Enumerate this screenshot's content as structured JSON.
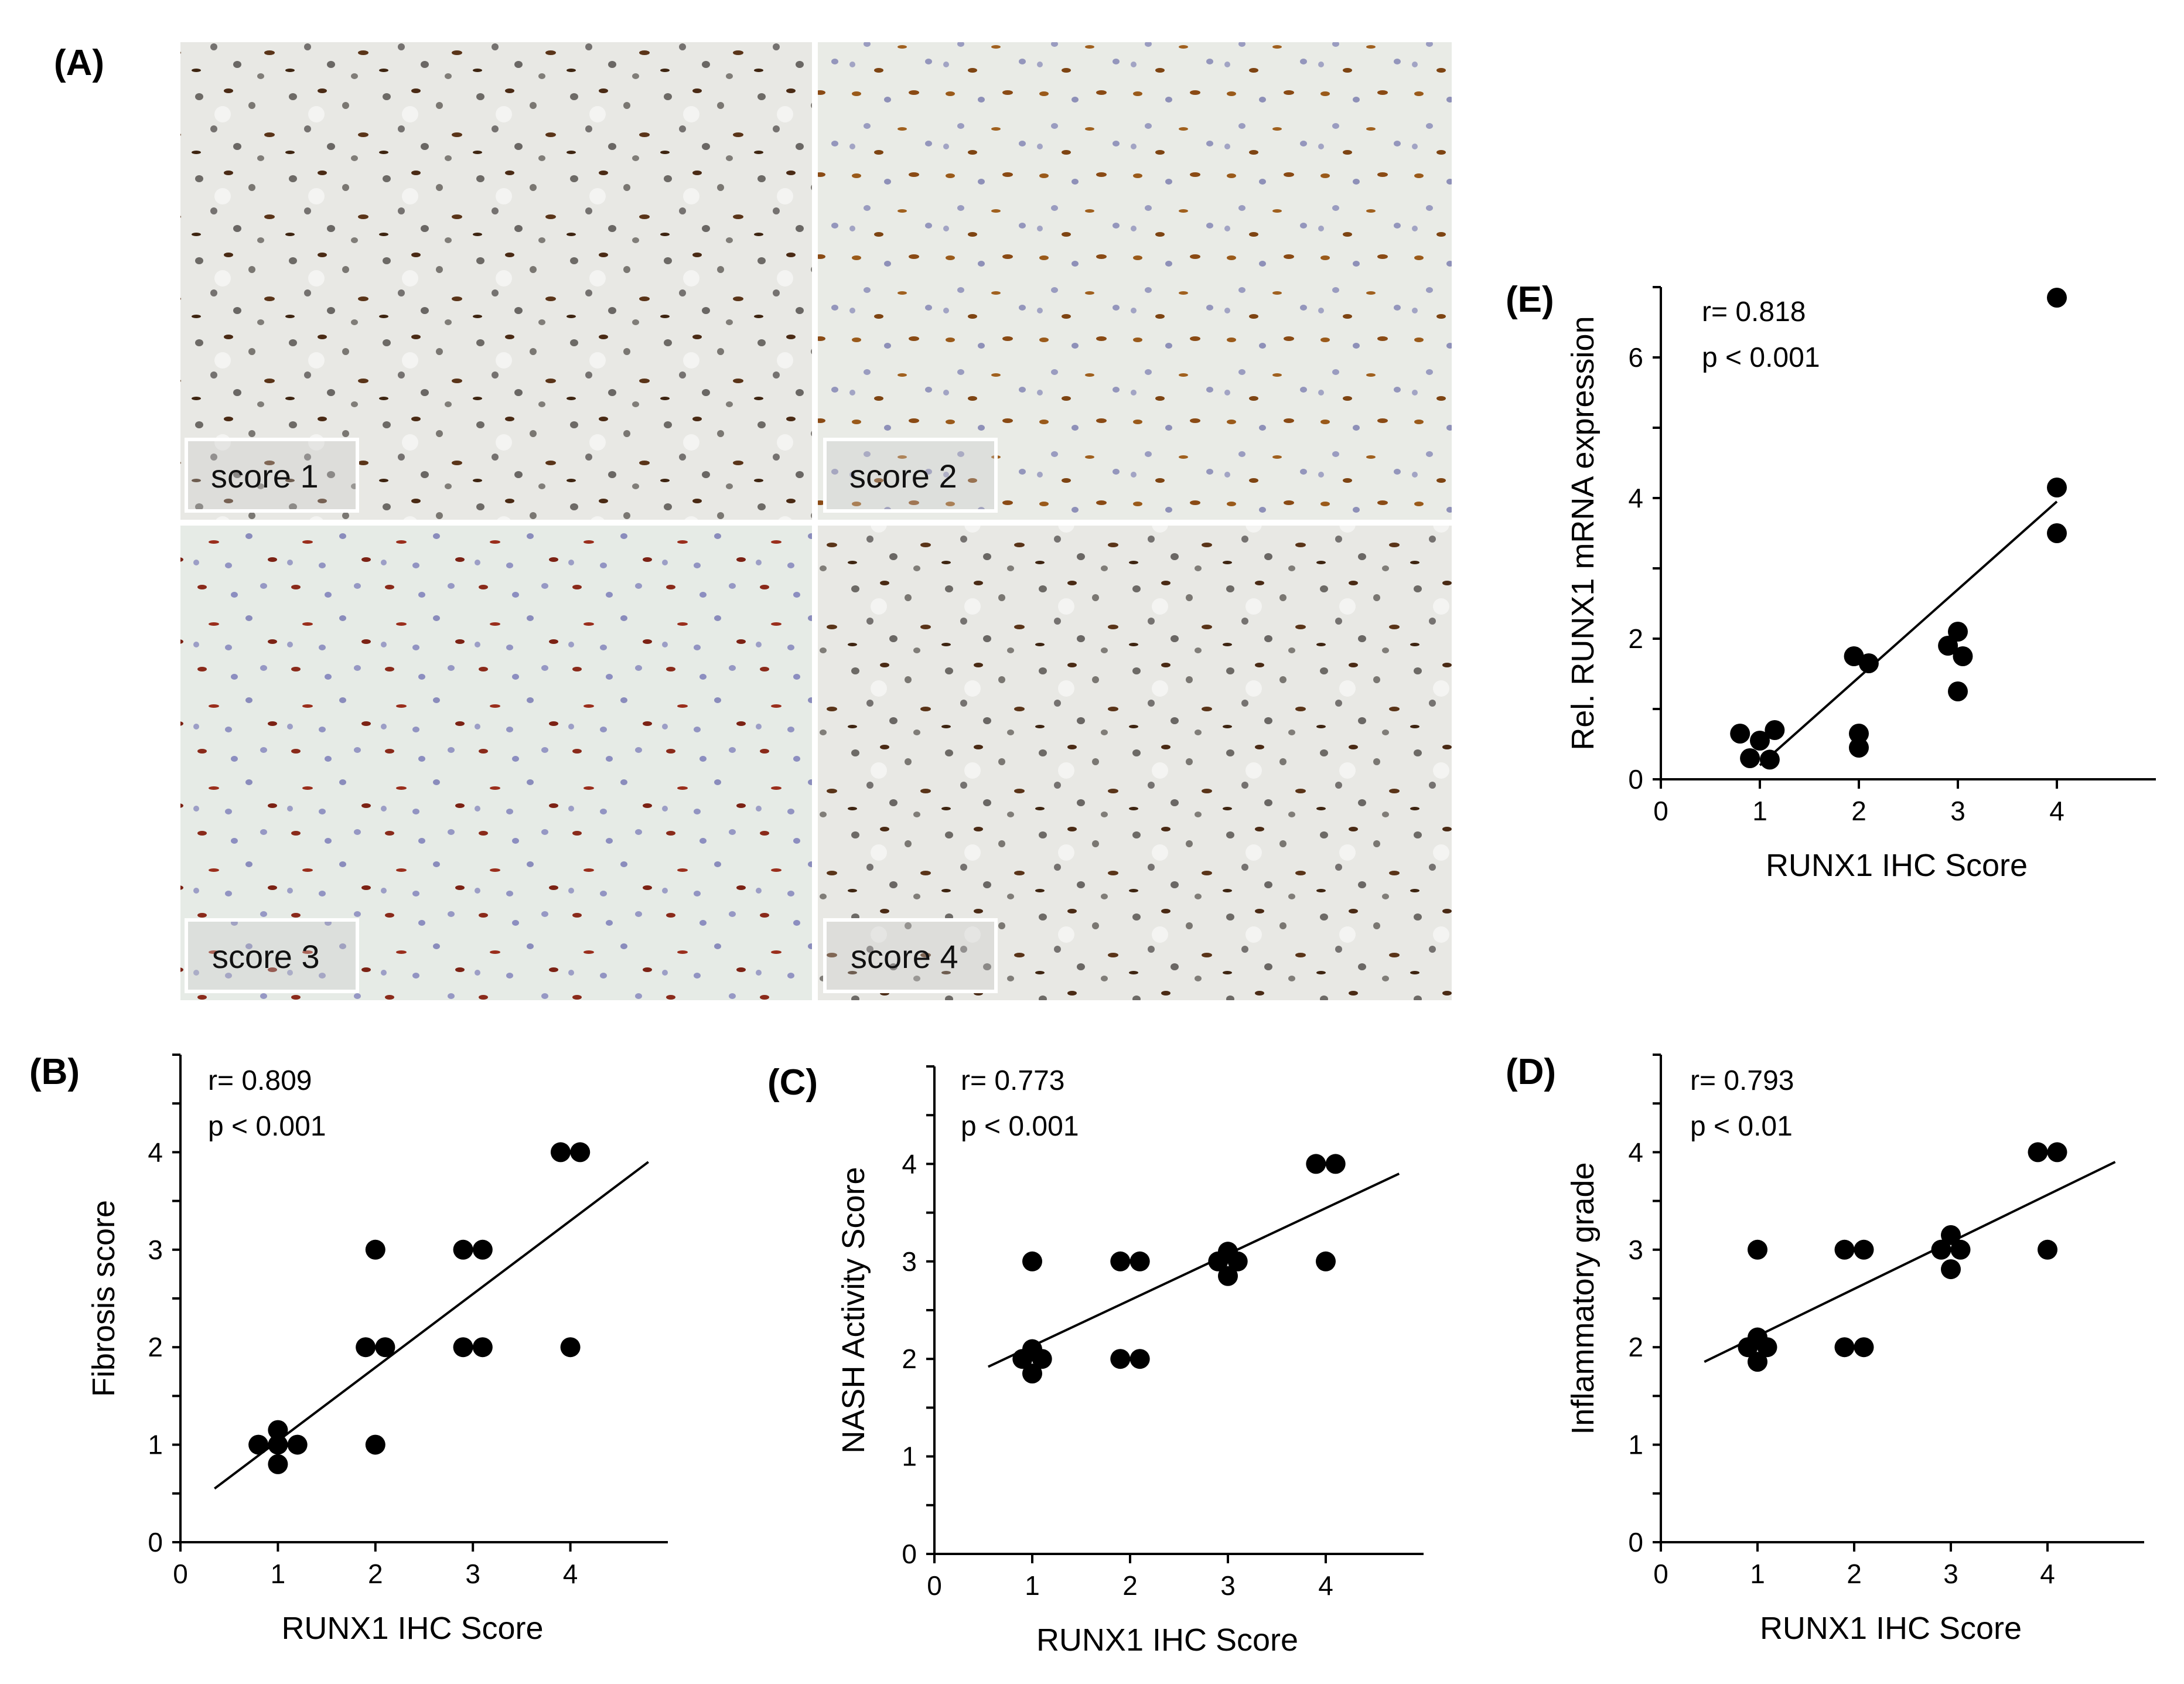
{
  "panel_A": {
    "label": "(A)",
    "tiles": [
      {
        "label": "score 1",
        "stain": "brown"
      },
      {
        "label": "score 2",
        "stain": "brown-blue"
      },
      {
        "label": "score 3",
        "stain": "red-blue"
      },
      {
        "label": "score 4",
        "stain": "brown"
      }
    ]
  },
  "chart_data": [
    {
      "id": "B",
      "panel_label": "(B)",
      "type": "scatter",
      "xlabel": "RUNX1 IHC Score",
      "ylabel": "Fibrosis score",
      "stat_r": "r= 0.809",
      "stat_p": "p < 0.001",
      "xlim": [
        0,
        5
      ],
      "ylim": [
        0,
        5
      ],
      "xticks": [
        0,
        1,
        2,
        3,
        4
      ],
      "yticks": [
        0,
        1,
        2,
        3,
        4
      ],
      "points": [
        [
          0.8,
          1
        ],
        [
          1,
          1
        ],
        [
          1.2,
          1
        ],
        [
          1,
          1.15
        ],
        [
          1,
          0.8
        ],
        [
          1.9,
          2
        ],
        [
          2.1,
          2
        ],
        [
          2,
          3
        ],
        [
          2,
          1
        ],
        [
          2.9,
          3
        ],
        [
          3.1,
          3
        ],
        [
          2.9,
          2
        ],
        [
          3.1,
          2
        ],
        [
          3.9,
          4
        ],
        [
          4.1,
          4
        ],
        [
          4,
          2
        ]
      ],
      "fit": [
        [
          0.35,
          0.55
        ],
        [
          4.8,
          3.9
        ]
      ]
    },
    {
      "id": "C",
      "panel_label": "(C)",
      "type": "scatter",
      "xlabel": "RUNX1 IHC Score",
      "ylabel": "NASH Activity Score",
      "stat_r": "r= 0.773",
      "stat_p": "p < 0.001",
      "xlim": [
        0,
        5
      ],
      "ylim": [
        0,
        5
      ],
      "xticks": [
        0,
        1,
        2,
        3,
        4
      ],
      "yticks": [
        0,
        1,
        2,
        3,
        4
      ],
      "points": [
        [
          0.9,
          2
        ],
        [
          1.1,
          2
        ],
        [
          1,
          2.1
        ],
        [
          1,
          1.85
        ],
        [
          1,
          3
        ],
        [
          1.9,
          3
        ],
        [
          2.1,
          3
        ],
        [
          1.9,
          2
        ],
        [
          2.1,
          2
        ],
        [
          2.9,
          3
        ],
        [
          3.1,
          3
        ],
        [
          3,
          3.1
        ],
        [
          3,
          2.85
        ],
        [
          3.9,
          4
        ],
        [
          4.1,
          4
        ],
        [
          4,
          3
        ]
      ],
      "fit": [
        [
          0.55,
          1.92
        ],
        [
          4.75,
          3.9
        ]
      ]
    },
    {
      "id": "D",
      "panel_label": "(D)",
      "type": "scatter",
      "xlabel": "RUNX1 IHC Score",
      "ylabel": "Inflammatory grade",
      "stat_r": "r= 0.793",
      "stat_p": "p < 0.01",
      "xlim": [
        0,
        5
      ],
      "ylim": [
        0,
        5
      ],
      "xticks": [
        0,
        1,
        2,
        3,
        4
      ],
      "yticks": [
        0,
        1,
        2,
        3,
        4
      ],
      "points": [
        [
          0.9,
          2
        ],
        [
          1.1,
          2
        ],
        [
          1,
          2.1
        ],
        [
          1,
          1.85
        ],
        [
          1,
          3
        ],
        [
          1.9,
          3
        ],
        [
          2.1,
          3
        ],
        [
          1.9,
          2
        ],
        [
          2.1,
          2
        ],
        [
          2.9,
          3
        ],
        [
          3.1,
          3
        ],
        [
          3,
          3.15
        ],
        [
          3,
          2.8
        ],
        [
          3.9,
          4
        ],
        [
          4.1,
          4
        ],
        [
          4,
          3
        ]
      ],
      "fit": [
        [
          0.45,
          1.85
        ],
        [
          4.7,
          3.9
        ]
      ]
    },
    {
      "id": "E",
      "panel_label": "(E)",
      "type": "scatter",
      "xlabel": "RUNX1 IHC Score",
      "ylabel": "Rel. RUNX1 mRNA expression",
      "stat_r": "r= 0.818",
      "stat_p": "p < 0.001",
      "xlim": [
        0,
        5
      ],
      "ylim": [
        0,
        7
      ],
      "xticks": [
        0,
        1,
        2,
        3,
        4
      ],
      "yticks": [
        0,
        2,
        4,
        6
      ],
      "points": [
        [
          0.8,
          0.65
        ],
        [
          0.9,
          0.3
        ],
        [
          1,
          0.55
        ],
        [
          1.1,
          0.28
        ],
        [
          1.15,
          0.7
        ],
        [
          1.95,
          1.75
        ],
        [
          2.1,
          1.65
        ],
        [
          2,
          0.65
        ],
        [
          2,
          0.45
        ],
        [
          2.9,
          1.9
        ],
        [
          3,
          2.1
        ],
        [
          3.05,
          1.75
        ],
        [
          3,
          1.25
        ],
        [
          4,
          6.85
        ],
        [
          4,
          4.15
        ],
        [
          4,
          3.5
        ]
      ],
      "fit": [
        [
          1,
          0.2
        ],
        [
          4,
          3.95
        ]
      ]
    }
  ]
}
